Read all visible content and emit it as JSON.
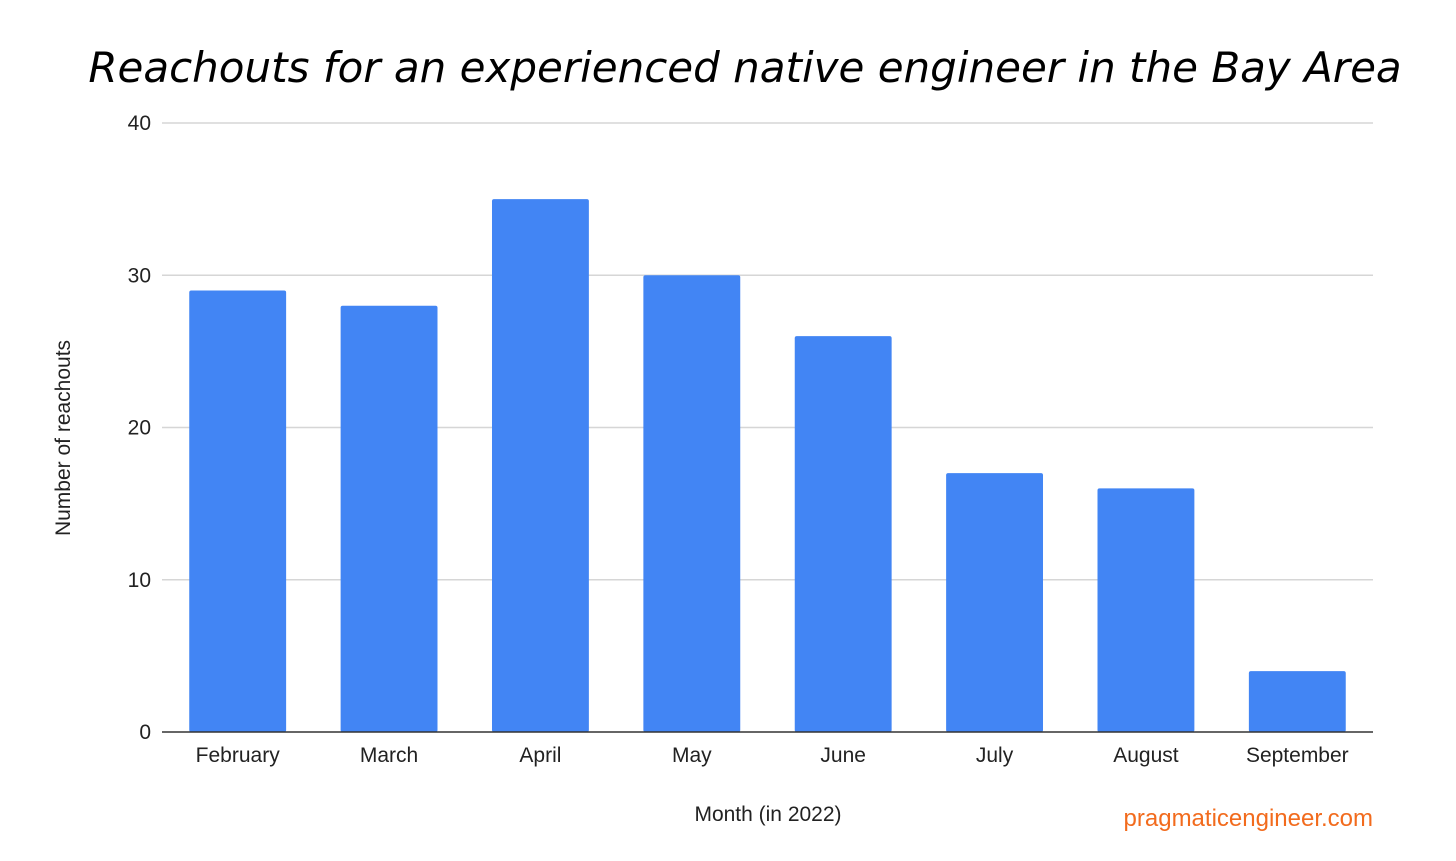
{
  "chart_data": {
    "type": "bar",
    "title": "Reachouts for an experienced native engineer in the Bay Area",
    "xlabel": "Month (in 2022)",
    "ylabel": "Number of reachouts",
    "categories": [
      "February",
      "March",
      "April",
      "May",
      "June",
      "July",
      "August",
      "September"
    ],
    "values": [
      29,
      28,
      35,
      30,
      26,
      17,
      16,
      4
    ],
    "ylim": [
      0,
      40
    ],
    "yticks": [
      0,
      10,
      20,
      30,
      40
    ],
    "grid": true,
    "legend": "none",
    "bar_color": "#4285F4"
  },
  "watermark": {
    "text": "pragmaticengineer.com",
    "color": "#F26B1D"
  }
}
